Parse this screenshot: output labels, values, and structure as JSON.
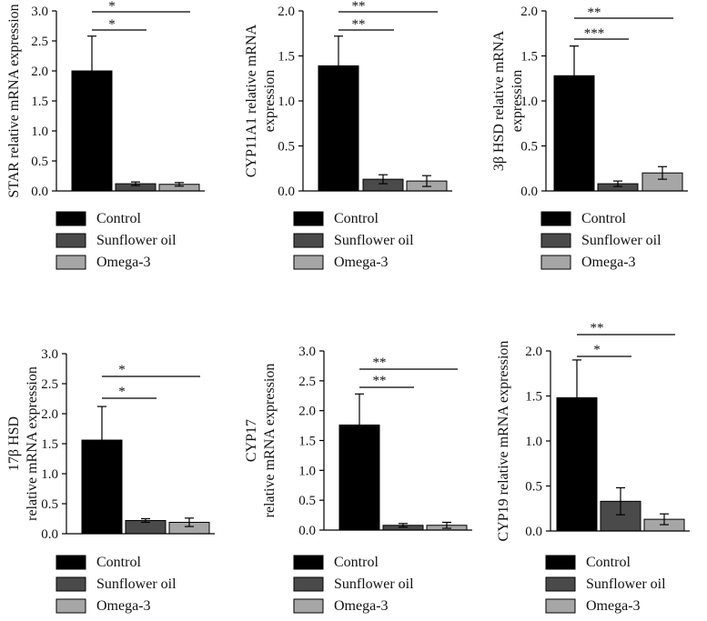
{
  "figure": {
    "legend_labels": [
      "Control",
      "Sunflower oil",
      "Omega-3"
    ],
    "colors": {
      "control": "#000000",
      "sunflower": "#4a4a4a",
      "omega": "#a6a6a6"
    }
  },
  "chart_data": [
    {
      "type": "bar",
      "ylabel_lines": [
        "STAR relative mRNA expression"
      ],
      "categories": [
        "Control",
        "Sunflower oil",
        "Omega-3"
      ],
      "values": [
        2.0,
        0.12,
        0.11
      ],
      "errors": [
        0.58,
        0.03,
        0.03
      ],
      "ylim": [
        0,
        3.0
      ],
      "yticks": [
        "0.0",
        "0.5",
        "1.0",
        "1.5",
        "2.0",
        "2.5",
        "3.0"
      ],
      "significance": [
        {
          "from": 0,
          "to": 1,
          "label": "*"
        },
        {
          "from": 0,
          "to": 2,
          "label": "*"
        }
      ]
    },
    {
      "type": "bar",
      "ylabel_lines": [
        "CYP11A1 relative mRNA",
        "expression"
      ],
      "categories": [
        "Control",
        "Sunflower oil",
        "Omega-3"
      ],
      "values": [
        1.39,
        0.13,
        0.11
      ],
      "errors": [
        0.33,
        0.05,
        0.06
      ],
      "ylim": [
        0,
        2.0
      ],
      "yticks": [
        "0.0",
        "0.5",
        "1.0",
        "1.5",
        "2.0"
      ],
      "significance": [
        {
          "from": 0,
          "to": 1,
          "label": "**"
        },
        {
          "from": 0,
          "to": 2,
          "label": "**"
        }
      ]
    },
    {
      "type": "bar",
      "ylabel_lines": [
        "3β HSD relative mRNA",
        "expression"
      ],
      "categories": [
        "Control",
        "Sunflower oil",
        "Omega-3"
      ],
      "values": [
        1.28,
        0.08,
        0.2
      ],
      "errors": [
        0.33,
        0.03,
        0.07
      ],
      "ylim": [
        0,
        2.0
      ],
      "yticks": [
        "0.0",
        "0.5",
        "1.0",
        "1.5",
        "2.0"
      ],
      "significance": [
        {
          "from": 0,
          "to": 1,
          "label": "***"
        },
        {
          "from": 0,
          "to": 2,
          "label": "**"
        }
      ]
    },
    {
      "type": "bar",
      "ylabel_lines": [
        "17β HSD",
        "relative mRNA expression"
      ],
      "categories": [
        "Control",
        "Sunflower oil",
        "Omega-3"
      ],
      "values": [
        1.56,
        0.22,
        0.19
      ],
      "errors": [
        0.56,
        0.03,
        0.07
      ],
      "ylim": [
        0,
        3.0
      ],
      "yticks": [
        "0.0",
        "0.5",
        "1.0",
        "1.5",
        "2.0",
        "2.5",
        "3.0"
      ],
      "significance": [
        {
          "from": 0,
          "to": 1,
          "label": "*"
        },
        {
          "from": 0,
          "to": 2,
          "label": "*"
        }
      ]
    },
    {
      "type": "bar",
      "ylabel_lines": [
        "CYP17",
        "relative mRNA expression"
      ],
      "categories": [
        "Control",
        "Sunflower oil",
        "Omega-3"
      ],
      "values": [
        1.76,
        0.08,
        0.08
      ],
      "errors": [
        0.52,
        0.03,
        0.05
      ],
      "ylim": [
        0,
        3.0
      ],
      "yticks": [
        "0.0",
        "0.5",
        "1.0",
        "1.5",
        "2.0",
        "2.5",
        "3.0"
      ],
      "significance": [
        {
          "from": 0,
          "to": 1,
          "label": "**"
        },
        {
          "from": 0,
          "to": 2,
          "label": "**"
        }
      ]
    },
    {
      "type": "bar",
      "ylabel_lines": [
        "CYP19 relative mRNA expression"
      ],
      "categories": [
        "Control",
        "Sunflower oil",
        "Omega-3"
      ],
      "values": [
        1.48,
        0.33,
        0.13
      ],
      "errors": [
        0.42,
        0.15,
        0.06
      ],
      "ylim": [
        0,
        2.0
      ],
      "yticks": [
        "0.0",
        "0.5",
        "1.0",
        "1.5",
        "2.0"
      ],
      "significance": [
        {
          "from": 0,
          "to": 1,
          "label": "*"
        },
        {
          "from": 0,
          "to": 2,
          "label": "**"
        }
      ]
    }
  ]
}
